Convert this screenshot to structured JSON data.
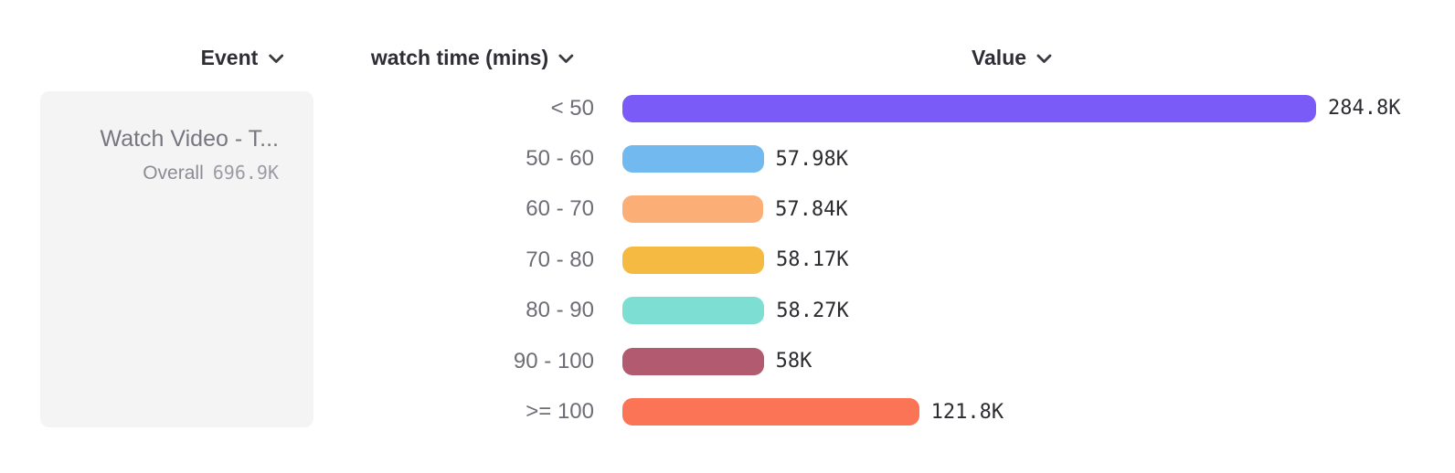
{
  "header": {
    "event_label": "Event",
    "property_label": "watch time (mins)",
    "value_label": "Value"
  },
  "event_card": {
    "title": "Watch Video - T...",
    "overall_label": "Overall",
    "overall_value": "696.9K"
  },
  "chart_data": {
    "type": "bar",
    "orientation": "horizontal",
    "title": "Value",
    "xlabel": "Value",
    "ylabel": "watch time (mins)",
    "categories": [
      "< 50",
      "50 - 60",
      "60 - 70",
      "70 - 80",
      "80 - 90",
      "90 - 100",
      ">= 100"
    ],
    "values": [
      284800,
      57980,
      57840,
      58170,
      58270,
      58000,
      121800
    ],
    "value_labels": [
      "284.8K",
      "57.98K",
      "57.84K",
      "58.17K",
      "58.27K",
      "58K",
      "121.8K"
    ],
    "bar_colors": [
      "#7B5BF7",
      "#72B9F0",
      "#FBAE76",
      "#F5BA41",
      "#7DDFD3",
      "#B25A6F",
      "#FB7456"
    ],
    "xlim": [
      0,
      284800
    ],
    "grid": false,
    "legend": false
  },
  "colors": {
    "background": "#ffffff",
    "card_background": "#f4f4f5",
    "header_text": "#2e2e36",
    "category_text": "#6d6d75",
    "value_text": "#2b2b30",
    "card_title_text": "#77777f",
    "card_overall_text": "#9c9ca4"
  }
}
